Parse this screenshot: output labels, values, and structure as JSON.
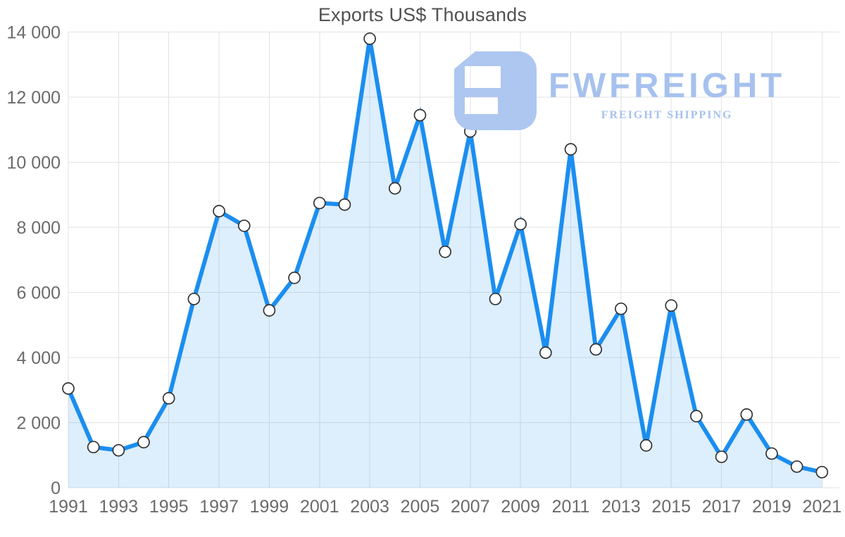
{
  "title": "Exports US$ Thousands",
  "watermark": {
    "brand": "FWFREIGHT",
    "tagline": "FREIGHT SHIPPING",
    "color": "#a6c1ee",
    "icon_color": "#aec7f0"
  },
  "chart_data": {
    "type": "area",
    "title": "Exports US$ Thousands",
    "x": [
      1991,
      1992,
      1993,
      1994,
      1995,
      1996,
      1997,
      1998,
      1999,
      2000,
      2001,
      2002,
      2003,
      2004,
      2005,
      2006,
      2007,
      2008,
      2009,
      2010,
      2011,
      2012,
      2013,
      2014,
      2015,
      2016,
      2017,
      2018,
      2019,
      2020,
      2021
    ],
    "values": [
      3050,
      1250,
      1150,
      1400,
      2750,
      5800,
      8500,
      8050,
      5450,
      6450,
      8750,
      8700,
      13800,
      9200,
      11450,
      7250,
      10950,
      5800,
      8100,
      4150,
      10400,
      4250,
      5500,
      1300,
      5600,
      2200,
      950,
      2250,
      1050,
      650,
      480
    ],
    "xlabel": "",
    "ylabel": "",
    "ylim": [
      0,
      14000
    ],
    "y_ticks": [
      0,
      2000,
      4000,
      6000,
      8000,
      10000,
      12000,
      14000
    ],
    "y_tick_labels": [
      "0",
      "2 000",
      "4 000",
      "6 000",
      "8 000",
      "10 000",
      "12 000",
      "14 000"
    ],
    "x_tick_labels": [
      "1991",
      "1993",
      "1995",
      "1997",
      "1999",
      "2001",
      "2003",
      "2005",
      "2007",
      "2009",
      "2011",
      "2013",
      "2015",
      "2017",
      "2019",
      "2021"
    ],
    "grid": true,
    "legend": "none",
    "line_color": "#1b8ef0",
    "fill_color": "rgba(27,142,240,0.15)",
    "grid_color": "#e2e2e2",
    "tick_color": "#6b6b6b",
    "marker_fill": "#ffffff",
    "marker_stroke": "#333333"
  }
}
